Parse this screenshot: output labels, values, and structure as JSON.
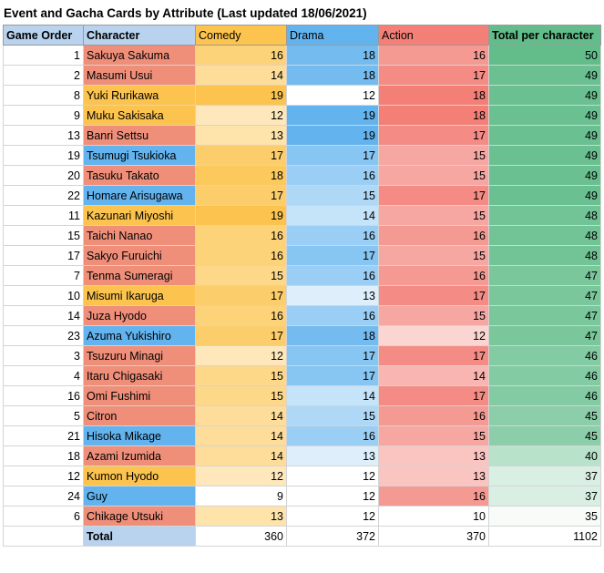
{
  "title": "Event and Gacha Cards by Attribute (Last updated 18/06/2021)",
  "headers": {
    "order": "Game Order",
    "character": "Character",
    "comedy": "Comedy",
    "drama": "Drama",
    "action": "Action",
    "total": "Total per character"
  },
  "colors": {
    "comedy": "#fcc44e",
    "drama": "#62b3ee",
    "action": "#f37f77",
    "total": "#62bd8a",
    "header_blue": "#b9d3ee"
  },
  "rows": [
    {
      "order": "1",
      "character": "Sakuya Sakuma",
      "char_attr": "action",
      "comedy": "16",
      "drama": "18",
      "action": "16",
      "total": "50"
    },
    {
      "order": "2",
      "character": "Masumi Usui",
      "char_attr": "action",
      "comedy": "14",
      "drama": "18",
      "action": "17",
      "total": "49"
    },
    {
      "order": "8",
      "character": "Yuki Rurikawa",
      "char_attr": "comedy",
      "comedy": "19",
      "drama": "12",
      "action": "18",
      "total": "49"
    },
    {
      "order": "9",
      "character": "Muku Sakisaka",
      "char_attr": "comedy",
      "comedy": "12",
      "drama": "19",
      "action": "18",
      "total": "49"
    },
    {
      "order": "13",
      "character": "Banri Settsu",
      "char_attr": "action",
      "comedy": "13",
      "drama": "19",
      "action": "17",
      "total": "49"
    },
    {
      "order": "19",
      "character": "Tsumugi Tsukioka",
      "char_attr": "drama",
      "comedy": "17",
      "drama": "17",
      "action": "15",
      "total": "49"
    },
    {
      "order": "20",
      "character": "Tasuku Takato",
      "char_attr": "action",
      "comedy": "18",
      "drama": "16",
      "action": "15",
      "total": "49"
    },
    {
      "order": "22",
      "character": "Homare Arisugawa",
      "char_attr": "drama",
      "comedy": "17",
      "drama": "15",
      "action": "17",
      "total": "49"
    },
    {
      "order": "11",
      "character": "Kazunari Miyoshi",
      "char_attr": "comedy",
      "comedy": "19",
      "drama": "14",
      "action": "15",
      "total": "48"
    },
    {
      "order": "15",
      "character": "Taichi Nanao",
      "char_attr": "action",
      "comedy": "16",
      "drama": "16",
      "action": "16",
      "total": "48"
    },
    {
      "order": "17",
      "character": "Sakyo Furuichi",
      "char_attr": "action",
      "comedy": "16",
      "drama": "17",
      "action": "15",
      "total": "48"
    },
    {
      "order": "7",
      "character": "Tenma Sumeragi",
      "char_attr": "action",
      "comedy": "15",
      "drama": "16",
      "action": "16",
      "total": "47"
    },
    {
      "order": "10",
      "character": "Misumi Ikaruga",
      "char_attr": "comedy",
      "comedy": "17",
      "drama": "13",
      "action": "17",
      "total": "47"
    },
    {
      "order": "14",
      "character": "Juza Hyodo",
      "char_attr": "action",
      "comedy": "16",
      "drama": "16",
      "action": "15",
      "total": "47"
    },
    {
      "order": "23",
      "character": "Azuma Yukishiro",
      "char_attr": "drama",
      "comedy": "17",
      "drama": "18",
      "action": "12",
      "total": "47"
    },
    {
      "order": "3",
      "character": "Tsuzuru Minagi",
      "char_attr": "action",
      "comedy": "12",
      "drama": "17",
      "action": "17",
      "total": "46"
    },
    {
      "order": "4",
      "character": "Itaru Chigasaki",
      "char_attr": "action",
      "comedy": "15",
      "drama": "17",
      "action": "14",
      "total": "46"
    },
    {
      "order": "16",
      "character": "Omi Fushimi",
      "char_attr": "action",
      "comedy": "15",
      "drama": "14",
      "action": "17",
      "total": "46"
    },
    {
      "order": "5",
      "character": "Citron",
      "char_attr": "action",
      "comedy": "14",
      "drama": "15",
      "action": "16",
      "total": "45"
    },
    {
      "order": "21",
      "character": "Hisoka Mikage",
      "char_attr": "drama",
      "comedy": "14",
      "drama": "16",
      "action": "15",
      "total": "45"
    },
    {
      "order": "18",
      "character": "Azami Izumida",
      "char_attr": "action",
      "comedy": "14",
      "drama": "13",
      "action": "13",
      "total": "40"
    },
    {
      "order": "12",
      "character": "Kumon Hyodo",
      "char_attr": "comedy",
      "comedy": "12",
      "drama": "12",
      "action": "13",
      "total": "37"
    },
    {
      "order": "24",
      "character": "Guy",
      "char_attr": "drama",
      "comedy": "9",
      "drama": "12",
      "action": "16",
      "total": "37"
    },
    {
      "order": "6",
      "character": "Chikage Utsuki",
      "char_attr": "action",
      "comedy": "13",
      "drama": "12",
      "action": "10",
      "total": "35"
    }
  ],
  "totals": {
    "label": "Total",
    "comedy": "360",
    "drama": "372",
    "action": "370",
    "total": "1102"
  }
}
